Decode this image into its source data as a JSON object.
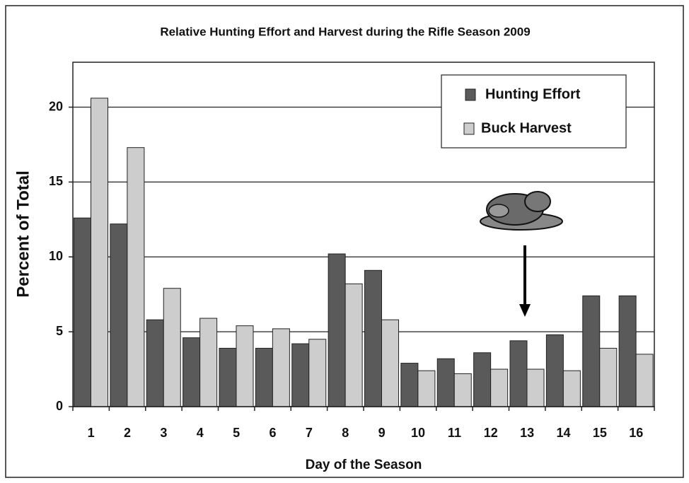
{
  "chart_data": {
    "type": "bar",
    "title": "Relative Hunting Effort and Harvest during the Rifle Season 2009",
    "x_label": "Day of the Season",
    "y_label": "Percent of Total",
    "categories": [
      "1",
      "2",
      "3",
      "4",
      "5",
      "6",
      "7",
      "8",
      "9",
      "10",
      "11",
      "12",
      "13",
      "14",
      "15",
      "16"
    ],
    "series": [
      {
        "name": "Hunting Effort",
        "color": "#5a5a5a",
        "values": [
          12.6,
          12.2,
          5.8,
          4.6,
          3.9,
          3.9,
          4.2,
          10.2,
          9.1,
          2.9,
          3.2,
          3.6,
          4.4,
          4.8,
          7.4,
          7.4
        ]
      },
      {
        "name": "Buck Harvest",
        "color": "#cdcdcd",
        "values": [
          20.6,
          17.3,
          7.9,
          5.9,
          5.4,
          5.2,
          4.5,
          8.2,
          5.8,
          2.4,
          2.2,
          2.5,
          2.5,
          2.4,
          3.9,
          3.5
        ]
      }
    ],
    "ylim": [
      0,
      23
    ],
    "yticks": [
      0,
      5,
      10,
      15,
      20
    ],
    "grid": true,
    "legend": "upper right"
  }
}
